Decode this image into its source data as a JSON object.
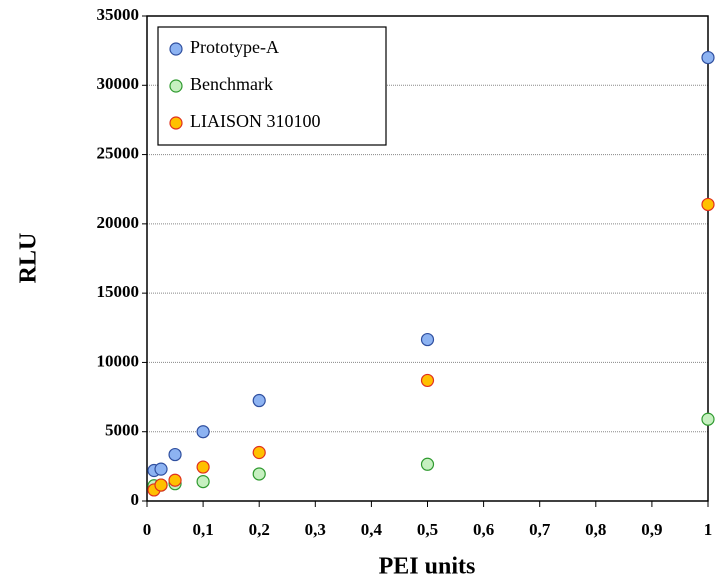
{
  "chart_data": {
    "type": "scatter",
    "x_label": "PEI units",
    "y_label": "RLU",
    "x": [
      0.0125,
      0.025,
      0.05,
      0.1,
      0.2,
      0.5,
      1
    ],
    "series": [
      {
        "name": "Prototype-A",
        "color": "#8db3f2",
        "edge": "#2f4f9f",
        "values": [
          2200,
          2300,
          3350,
          5000,
          7250,
          11650,
          32000
        ]
      },
      {
        "name": "Benchmark",
        "color": "#c6f0c0",
        "edge": "#2f9a2f",
        "values": [
          1100,
          1150,
          1250,
          1400,
          1950,
          2650,
          5900
        ]
      },
      {
        "name": "LIAISON 310100",
        "color": "#ffc000",
        "edge": "#e0301e",
        "values": [
          800,
          1150,
          1500,
          2450,
          3500,
          8700,
          21400
        ]
      }
    ],
    "xlim": [
      0,
      1
    ],
    "xticks": [
      0,
      {
        "value": 0.1,
        "label": "0,1"
      },
      {
        "value": 0.2,
        "label": "0,2"
      },
      {
        "value": 0.3,
        "label": "0,3"
      },
      {
        "value": 0.4,
        "label": "0,4"
      },
      {
        "value": 0.5,
        "label": "0,5"
      },
      {
        "value": 0.6,
        "label": "0,6"
      },
      {
        "value": 0.7,
        "label": "0,7"
      },
      {
        "value": 0.8,
        "label": "0,8"
      },
      {
        "value": 0.9,
        "label": "0,9"
      },
      1
    ],
    "ylim": [
      0,
      35000
    ],
    "yticks": [
      0,
      5000,
      10000,
      15000,
      20000,
      25000,
      30000,
      35000
    ],
    "grid": true,
    "legend": "top-left"
  }
}
